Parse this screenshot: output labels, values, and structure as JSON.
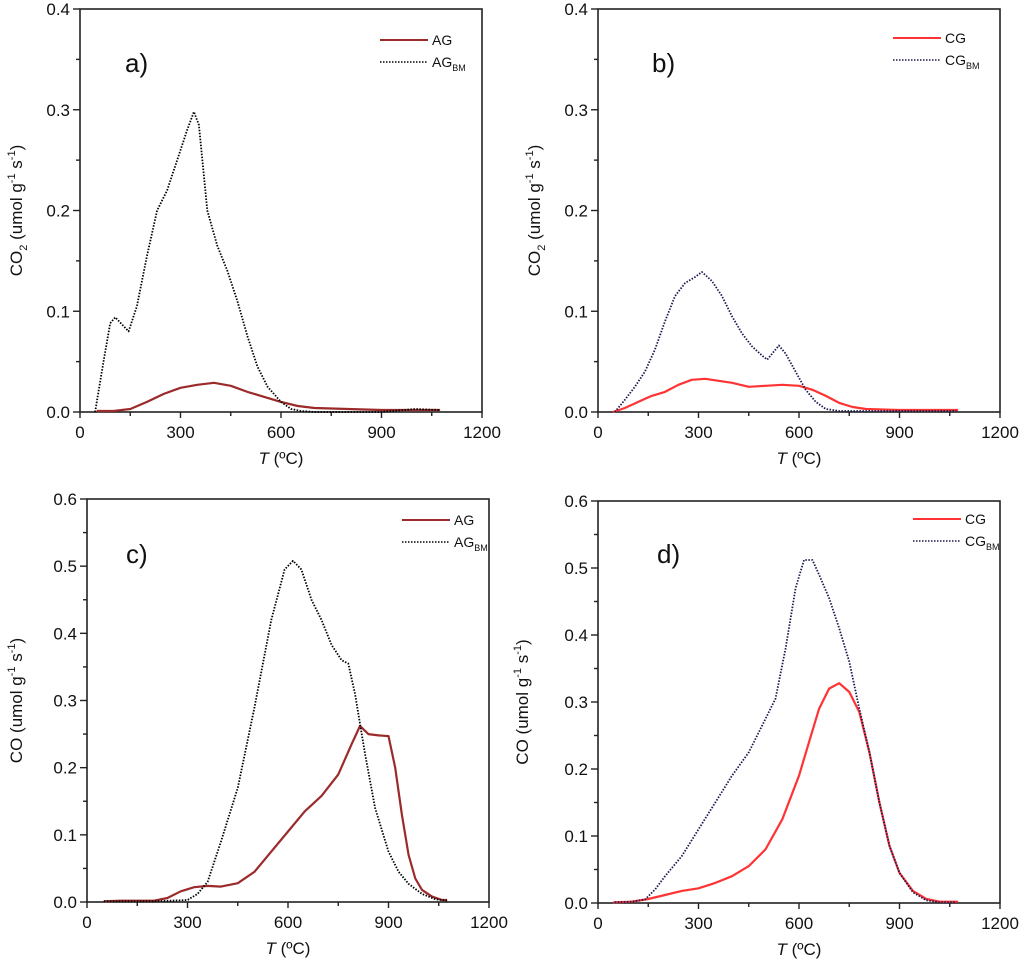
{
  "chart_data": [
    {
      "id": "a",
      "type": "line",
      "panel_label": "a)",
      "xlabel_italic": "T",
      "xlabel_rest": " (ºC)",
      "ylabel_parts": [
        "CO",
        "2",
        " (umol g",
        "-1",
        " s",
        "-1",
        ")"
      ],
      "xlim": [
        0,
        1200
      ],
      "ylim": [
        0,
        0.4
      ],
      "xticks": [
        0,
        300,
        600,
        900,
        1200
      ],
      "xtick_labels": [
        "0",
        "300",
        "600",
        "900",
        "1200"
      ],
      "yticks": [
        0.0,
        0.1,
        0.2,
        0.3,
        0.4
      ],
      "ytick_labels": [
        "0.0",
        "0.1",
        "0.2",
        "0.3",
        "0.4"
      ],
      "legend_position": "top-right",
      "series": [
        {
          "name": "AG",
          "subscript": "",
          "color": "#9b2a2a",
          "style": "solid",
          "x": [
            50,
            100,
            150,
            200,
            250,
            300,
            350,
            400,
            450,
            500,
            550,
            600,
            650,
            700,
            800,
            900,
            1000,
            1075
          ],
          "y": [
            0.001,
            0.001,
            0.003,
            0.01,
            0.018,
            0.024,
            0.027,
            0.029,
            0.026,
            0.02,
            0.015,
            0.01,
            0.006,
            0.004,
            0.003,
            0.002,
            0.002,
            0.002
          ]
        },
        {
          "name": "AG",
          "subscript": "BM",
          "color": "#000000",
          "style": "dotted",
          "x": [
            45,
            70,
            90,
            105,
            125,
            145,
            170,
            200,
            230,
            260,
            290,
            320,
            340,
            355,
            380,
            410,
            440,
            470,
            500,
            530,
            560,
            600,
            630,
            660,
            700,
            800,
            900,
            1000,
            1075
          ],
          "y": [
            0.0,
            0.05,
            0.088,
            0.094,
            0.087,
            0.08,
            0.105,
            0.155,
            0.2,
            0.22,
            0.25,
            0.28,
            0.298,
            0.285,
            0.2,
            0.165,
            0.14,
            0.11,
            0.075,
            0.045,
            0.025,
            0.01,
            0.003,
            0.001,
            0.0,
            0.0,
            0.0,
            0.003,
            0.002
          ]
        }
      ]
    },
    {
      "id": "b",
      "type": "line",
      "panel_label": "b)",
      "xlabel_italic": "T",
      "xlabel_rest": " (ºC)",
      "ylabel_parts": [
        "CO",
        "2",
        " (umol g",
        "-1",
        " s",
        "-1",
        ")"
      ],
      "xlim": [
        0,
        1200
      ],
      "ylim": [
        0,
        0.4
      ],
      "xticks": [
        0,
        300,
        600,
        900,
        1200
      ],
      "xtick_labels": [
        "0",
        "300",
        "600",
        "900",
        "1200"
      ],
      "yticks": [
        0.0,
        0.1,
        0.2,
        0.3,
        0.4
      ],
      "ytick_labels": [
        "0.0",
        "0.1",
        "0.2",
        "0.3",
        "0.4"
      ],
      "legend_position": "top-right",
      "series": [
        {
          "name": "CG",
          "subscript": "",
          "color": "#ff3333",
          "style": "solid",
          "x": [
            45,
            80,
            120,
            160,
            200,
            240,
            280,
            320,
            360,
            400,
            450,
            500,
            550,
            600,
            640,
            680,
            720,
            760,
            800,
            900,
            1000,
            1075
          ],
          "y": [
            0.0,
            0.004,
            0.01,
            0.016,
            0.02,
            0.027,
            0.032,
            0.033,
            0.031,
            0.029,
            0.025,
            0.026,
            0.027,
            0.026,
            0.022,
            0.016,
            0.009,
            0.005,
            0.003,
            0.002,
            0.002,
            0.002
          ]
        },
        {
          "name": "CG",
          "subscript": "BM",
          "color": "#1a1a4e",
          "style": "dotted",
          "x": [
            50,
            80,
            110,
            140,
            170,
            200,
            230,
            260,
            290,
            310,
            340,
            370,
            400,
            430,
            460,
            490,
            505,
            520,
            540,
            560,
            590,
            620,
            650,
            680,
            720,
            800,
            900,
            1000,
            1070
          ],
          "y": [
            0.0,
            0.012,
            0.025,
            0.04,
            0.062,
            0.09,
            0.115,
            0.128,
            0.134,
            0.139,
            0.13,
            0.115,
            0.095,
            0.078,
            0.065,
            0.056,
            0.052,
            0.058,
            0.066,
            0.058,
            0.04,
            0.022,
            0.01,
            0.003,
            0.001,
            0.001,
            0.001,
            0.001,
            0.001
          ]
        }
      ]
    },
    {
      "id": "c",
      "type": "line",
      "panel_label": "c)",
      "xlabel_italic": "T",
      "xlabel_rest": " (ºC)",
      "ylabel_parts": [
        "CO",
        "",
        " (umol g",
        "-1",
        " s",
        "-1",
        ")"
      ],
      "xlim": [
        0,
        1200
      ],
      "ylim": [
        0,
        0.6
      ],
      "xticks": [
        0,
        300,
        600,
        900,
        1200
      ],
      "xtick_labels": [
        "0",
        "300",
        "600",
        "900",
        "1200"
      ],
      "yticks": [
        0.0,
        0.1,
        0.2,
        0.3,
        0.4,
        0.5,
        0.6
      ],
      "ytick_labels": [
        "0.0",
        "0.1",
        "0.2",
        "0.3",
        "0.4",
        "0.5",
        "0.6"
      ],
      "legend_position": "top-right",
      "series": [
        {
          "name": "AG",
          "subscript": "",
          "color": "#9b2a2a",
          "style": "solid",
          "x": [
            50,
            100,
            150,
            200,
            240,
            280,
            320,
            360,
            400,
            450,
            500,
            550,
            600,
            650,
            700,
            750,
            790,
            815,
            840,
            870,
            900,
            920,
            940,
            960,
            980,
            1000,
            1030,
            1060,
            1075
          ],
          "y": [
            0.001,
            0.002,
            0.002,
            0.002,
            0.006,
            0.016,
            0.022,
            0.024,
            0.023,
            0.028,
            0.045,
            0.075,
            0.105,
            0.135,
            0.158,
            0.19,
            0.235,
            0.262,
            0.25,
            0.248,
            0.247,
            0.2,
            0.13,
            0.07,
            0.035,
            0.018,
            0.008,
            0.003,
            0.003
          ]
        },
        {
          "name": "AG",
          "subscript": "BM",
          "color": "#000000",
          "style": "dotted",
          "x": [
            50,
            100,
            200,
            300,
            330,
            360,
            400,
            450,
            500,
            550,
            590,
            615,
            640,
            670,
            700,
            730,
            760,
            780,
            800,
            830,
            860,
            900,
            930,
            960,
            1000,
            1040,
            1075
          ],
          "y": [
            0.001,
            0.001,
            0.001,
            0.003,
            0.012,
            0.03,
            0.09,
            0.17,
            0.29,
            0.42,
            0.495,
            0.508,
            0.495,
            0.45,
            0.42,
            0.383,
            0.36,
            0.355,
            0.31,
            0.22,
            0.14,
            0.075,
            0.045,
            0.027,
            0.012,
            0.004,
            0.002
          ]
        }
      ]
    },
    {
      "id": "d",
      "type": "line",
      "panel_label": "d)",
      "xlabel_italic": "T",
      "xlabel_rest": " (ºC)",
      "ylabel_parts": [
        "CO",
        "",
        " (umol g",
        "-1",
        " s",
        "-1",
        ")"
      ],
      "xlim": [
        0,
        1200
      ],
      "ylim": [
        0,
        0.6
      ],
      "xticks": [
        0,
        300,
        600,
        900,
        1200
      ],
      "xtick_labels": [
        "0",
        "300",
        "600",
        "900",
        "1200"
      ],
      "yticks": [
        0.0,
        0.1,
        0.2,
        0.3,
        0.4,
        0.5,
        0.6
      ],
      "ytick_labels": [
        "0.0",
        "0.1",
        "0.2",
        "0.3",
        "0.4",
        "0.5",
        "0.6"
      ],
      "legend_position": "top-right",
      "series": [
        {
          "name": "CG",
          "subscript": "",
          "color": "#ff3333",
          "style": "solid",
          "x": [
            45,
            100,
            150,
            200,
            250,
            300,
            350,
            400,
            450,
            500,
            550,
            600,
            630,
            660,
            690,
            720,
            750,
            780,
            810,
            840,
            870,
            900,
            940,
            980,
            1020,
            1075
          ],
          "y": [
            0.001,
            0.002,
            0.006,
            0.012,
            0.018,
            0.022,
            0.03,
            0.04,
            0.055,
            0.08,
            0.125,
            0.19,
            0.24,
            0.29,
            0.32,
            0.328,
            0.315,
            0.285,
            0.225,
            0.15,
            0.085,
            0.045,
            0.018,
            0.006,
            0.002,
            0.002
          ]
        },
        {
          "name": "CG",
          "subscript": "BM",
          "color": "#1a1a4e",
          "style": "dotted",
          "x": [
            50,
            100,
            140,
            170,
            200,
            250,
            300,
            350,
            400,
            450,
            500,
            530,
            560,
            590,
            615,
            640,
            660,
            690,
            720,
            750,
            780,
            810,
            840,
            870,
            900,
            940,
            980,
            1020,
            1070
          ],
          "y": [
            0.001,
            0.002,
            0.005,
            0.02,
            0.04,
            0.07,
            0.11,
            0.15,
            0.19,
            0.225,
            0.275,
            0.305,
            0.38,
            0.47,
            0.512,
            0.512,
            0.49,
            0.455,
            0.41,
            0.36,
            0.29,
            0.225,
            0.15,
            0.085,
            0.045,
            0.016,
            0.004,
            0.001,
            0.001
          ]
        }
      ]
    }
  ]
}
